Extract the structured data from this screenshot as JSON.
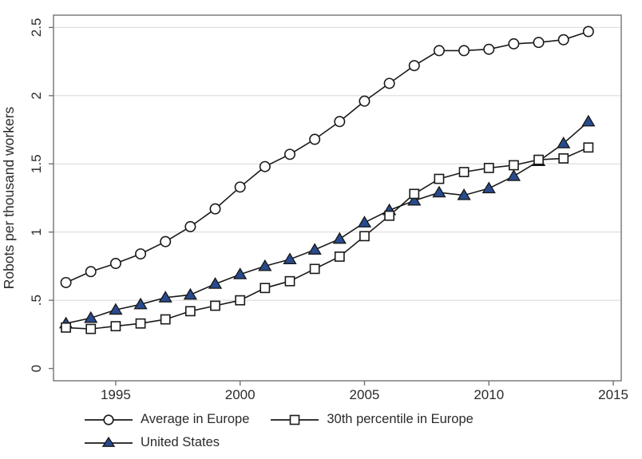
{
  "figure": {
    "background": "#ffffff"
  },
  "chart_data": {
    "type": "line",
    "title": "",
    "xlabel": "",
    "ylabel": "Robots per thousand workers",
    "x": [
      1993,
      1994,
      1995,
      1996,
      1997,
      1998,
      1999,
      2000,
      2001,
      2002,
      2003,
      2004,
      2005,
      2006,
      2007,
      2008,
      2009,
      2010,
      2011,
      2012,
      2013,
      2014
    ],
    "series": [
      {
        "name": "Average in Europe",
        "marker": "circle",
        "marker_fill": "#ffffff",
        "values": [
          0.63,
          0.71,
          0.77,
          0.84,
          0.93,
          1.04,
          1.17,
          1.33,
          1.48,
          1.57,
          1.68,
          1.81,
          1.96,
          2.09,
          2.22,
          2.33,
          2.33,
          2.34,
          2.38,
          2.39,
          2.41,
          2.47
        ]
      },
      {
        "name": "30th percentile in Europe",
        "marker": "square",
        "marker_fill": "#ffffff",
        "values": [
          0.3,
          0.29,
          0.31,
          0.33,
          0.36,
          0.42,
          0.46,
          0.5,
          0.59,
          0.64,
          0.73,
          0.82,
          0.97,
          1.12,
          1.28,
          1.39,
          1.44,
          1.47,
          1.49,
          1.53,
          1.54,
          1.62
        ]
      },
      {
        "name": "United States",
        "marker": "triangle",
        "marker_fill": "#284b8f",
        "values": [
          0.33,
          0.37,
          0.43,
          0.47,
          0.52,
          0.54,
          0.62,
          0.69,
          0.75,
          0.8,
          0.87,
          0.95,
          1.07,
          1.16,
          1.23,
          1.29,
          1.27,
          1.32,
          1.41,
          1.52,
          1.65,
          1.81
        ]
      }
    ],
    "x_ticks": [
      "1995",
      "2000",
      "2005",
      "2010",
      "2015"
    ],
    "x_tick_values": [
      1995,
      2000,
      2005,
      2010,
      2015
    ],
    "y_ticks": [
      "0",
      ".5",
      "1",
      "1.5",
      "2",
      "2.5"
    ],
    "y_tick_values": [
      0,
      0.5,
      1,
      1.5,
      2,
      2.5
    ],
    "xlim": [
      1992.5,
      2015.32
    ],
    "ylim": [
      -0.09,
      2.59
    ],
    "grid": "horizontal",
    "legend_position": "bottom",
    "colors": {
      "line": "#1a1a1a",
      "open_marker_fill": "#ffffff",
      "triangle_fill": "#284b8f",
      "gridline": "#dcdcdc",
      "axis_border": "#737373",
      "text": "#2b2b2b"
    }
  }
}
